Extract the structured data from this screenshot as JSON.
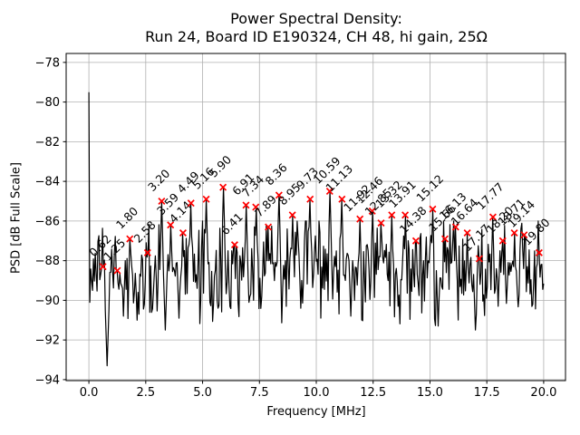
{
  "figure": {
    "title_line1": "Power Spectral Density:",
    "title_line2": "Run 24, Board ID E190324, CH 48, hi gain, 25Ω",
    "xlabel": "Frequency [MHz]",
    "ylabel": "PSD [dB Full Scale]"
  },
  "chart_data": {
    "type": "line",
    "title": "Power Spectral Density: Run 24, Board ID E190324, CH 48, hi gain, 25Ω",
    "xlabel": "Frequency [MHz]",
    "ylabel": "PSD [dB Full Scale]",
    "xlim": [
      -1.0,
      20.96
    ],
    "ylim": [
      -94.05,
      -77.55
    ],
    "xticks": [
      0.0,
      2.5,
      5.0,
      7.5,
      10.0,
      12.5,
      15.0,
      17.5,
      20.0
    ],
    "xtick_labels": [
      "0.0",
      "2.5",
      "5.0",
      "7.5",
      "10.0",
      "12.5",
      "15.0",
      "17.5",
      "20.0"
    ],
    "yticks": [
      -78,
      -80,
      -82,
      -84,
      -86,
      -88,
      -90,
      -92,
      -94
    ],
    "ytick_labels": [
      "−78",
      "−80",
      "−82",
      "−84",
      "−86",
      "−88",
      "−90",
      "−92",
      "−94"
    ],
    "grid": true,
    "grid_color": "#b0b0b0",
    "line_color": "#000000",
    "marker_color": "#ff0000",
    "text_color": "#000000",
    "dc_spike": {
      "freq": 0.0,
      "psd": -79.5
    },
    "noise_floor": {
      "mean": -88.5,
      "min": -93.3,
      "max": -86.0
    },
    "dips": [
      [
        0.78,
        -93.3
      ],
      [
        1.52,
        -90.8
      ],
      [
        2.12,
        -91.0
      ],
      [
        3.36,
        -91.5
      ],
      [
        3.95,
        -90.9
      ],
      [
        6.2,
        -90.3
      ],
      [
        7.05,
        -90.1
      ],
      [
        9.3,
        -90.4
      ],
      [
        11.5,
        -90.8
      ],
      [
        13.6,
        -90.3
      ],
      [
        15.35,
        -91.3
      ],
      [
        17.0,
        -91.5
      ],
      [
        18.0,
        -90.3
      ],
      [
        19.5,
        -90.2
      ]
    ],
    "peaks": [
      {
        "freq": 0.62,
        "psd": -88.3,
        "label": "0.62"
      },
      {
        "freq": 1.25,
        "psd": -88.5,
        "label": "1.25"
      },
      {
        "freq": 1.8,
        "psd": -86.9,
        "label": "1.80"
      },
      {
        "freq": 2.58,
        "psd": -87.6,
        "label": "2.58"
      },
      {
        "freq": 3.2,
        "psd": -85.0,
        "label": "3.20"
      },
      {
        "freq": 3.59,
        "psd": -86.2,
        "label": "3.59"
      },
      {
        "freq": 4.14,
        "psd": -86.6,
        "label": "4.14"
      },
      {
        "freq": 4.49,
        "psd": -85.1,
        "label": "4.49"
      },
      {
        "freq": 5.16,
        "psd": -84.9,
        "label": "5.16"
      },
      {
        "freq": 5.9,
        "psd": -84.3,
        "label": "5.90"
      },
      {
        "freq": 6.41,
        "psd": -87.2,
        "label": "6.41"
      },
      {
        "freq": 6.91,
        "psd": -85.2,
        "label": "6.91"
      },
      {
        "freq": 7.34,
        "psd": -85.3,
        "label": "7.34"
      },
      {
        "freq": 7.89,
        "psd": -86.3,
        "label": "7.89"
      },
      {
        "freq": 8.36,
        "psd": -84.7,
        "label": "8.36"
      },
      {
        "freq": 8.95,
        "psd": -85.7,
        "label": "8.95"
      },
      {
        "freq": 9.73,
        "psd": -84.9,
        "label": "9.73"
      },
      {
        "freq": 10.59,
        "psd": -84.5,
        "label": "10.59"
      },
      {
        "freq": 11.13,
        "psd": -84.9,
        "label": "11.13"
      },
      {
        "freq": 11.92,
        "psd": -85.9,
        "label": "11.92"
      },
      {
        "freq": 12.46,
        "psd": -85.5,
        "label": "12.46"
      },
      {
        "freq": 12.85,
        "psd": -86.1,
        "label": "12.85"
      },
      {
        "freq": 13.32,
        "psd": -85.7,
        "label": "13.32"
      },
      {
        "freq": 13.91,
        "psd": -85.7,
        "label": "13.91"
      },
      {
        "freq": 14.38,
        "psd": -87.0,
        "label": "14.38"
      },
      {
        "freq": 15.12,
        "psd": -85.4,
        "label": "15.12"
      },
      {
        "freq": 15.66,
        "psd": -86.9,
        "label": "15.66"
      },
      {
        "freq": 16.13,
        "psd": -86.3,
        "label": "16.13"
      },
      {
        "freq": 16.64,
        "psd": -86.6,
        "label": "16.64"
      },
      {
        "freq": 17.17,
        "psd": -87.9,
        "label": "17.17"
      },
      {
        "freq": 17.77,
        "psd": -85.8,
        "label": "17.77"
      },
      {
        "freq": 18.2,
        "psd": -87.0,
        "label": "18.20"
      },
      {
        "freq": 18.71,
        "psd": -86.6,
        "label": "18.71"
      },
      {
        "freq": 19.14,
        "psd": -86.7,
        "label": "19.14"
      },
      {
        "freq": 19.8,
        "psd": -87.6,
        "label": "19.80"
      }
    ]
  }
}
